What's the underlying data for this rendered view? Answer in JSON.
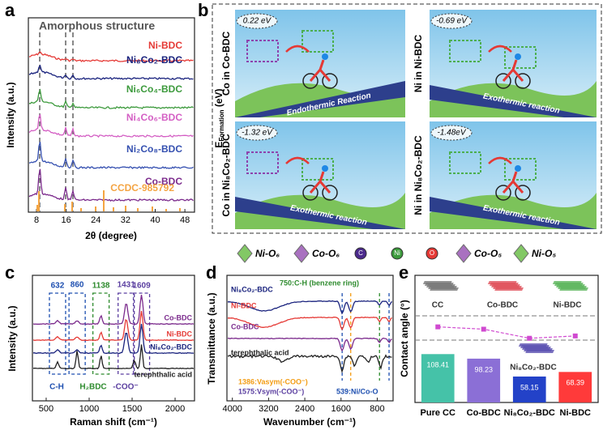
{
  "panel_a": {
    "label": "a",
    "annotation": "Amorphous structure",
    "ylabel": "Intensity (a.u.)",
    "xlabel": "2θ (degree)",
    "xlim": [
      5.8,
      50.6
    ],
    "xticks": [
      8,
      16,
      24,
      32,
      40,
      48
    ],
    "series": [
      {
        "name": "Ni-BDC",
        "color": "#e53935"
      },
      {
        "name": "Ni₈Co₂-BDC",
        "color": "#1a237e"
      },
      {
        "name": "Ni₆Co₄-BDC",
        "color": "#3c9a3c"
      },
      {
        "name": "Ni₄Co₆-BDC",
        "color": "#d45fc4"
      },
      {
        "name": "Ni₂Co₈-BDC",
        "color": "#3550b0"
      },
      {
        "name": "Co-BDC",
        "color": "#7b2a8c"
      },
      {
        "name": "CCDC-985792",
        "color": "#f4a442"
      }
    ]
  },
  "panel_b": {
    "label": "b",
    "ylabel_main": "E",
    "ylabel_sub": "Formation",
    "ylabel_unit": " (eV)",
    "quadrants": [
      {
        "energy": "0.22 eV",
        "site": "Co in Co-BDC",
        "reaction": "Endothermic Reaction"
      },
      {
        "energy": "-0.69 eV",
        "site": "Ni in Ni-BDC",
        "reaction": "Exothermic reaction"
      },
      {
        "energy": "-1.32 eV",
        "site": "Co in Ni₈Co₂-BDC",
        "reaction": "Exothermic reaction"
      },
      {
        "energy": "-1.48eV",
        "site": "Ni in Ni₈Co₂-BDC",
        "reaction": "Exothermic reaction"
      }
    ],
    "legend": [
      "Ni-O₆",
      "Co-O₆",
      "C",
      "Ni",
      "O",
      "Co-O₅",
      "Ni-O₅"
    ]
  },
  "panel_c": {
    "label": "c",
    "ylabel": "Intensity (a.u.)",
    "xlabel": "Raman shift (cm⁻¹)",
    "xlim": [
      340,
      2226
    ],
    "xticks": [
      500,
      1000,
      1500,
      2000
    ],
    "peaks": [
      632,
      860,
      1138,
      1431,
      1609
    ],
    "groups": [
      "C-H",
      "H₂BDC",
      "-COO⁻"
    ],
    "series": [
      {
        "name": "Co-BDC",
        "color": "#7b2a8c"
      },
      {
        "name": "Ni-BDC",
        "color": "#e53935"
      },
      {
        "name": "Ni₈Co₂-BDC",
        "color": "#1a237e"
      },
      {
        "name": "terephthalic acid",
        "color": "#222222"
      }
    ]
  },
  "panel_d": {
    "label": "d",
    "ylabel": "Transmittance (a.u.)",
    "xlabel": "Wavenumber (cm⁻¹)",
    "xlim": [
      4120,
      450
    ],
    "xticks": [
      4000,
      3200,
      2400,
      1600,
      800
    ],
    "annotations": [
      "750:C-H (benzene ring)",
      "1386:Vasym(-COO⁻)",
      "1575:Vsym(-COO⁻)",
      "539:Ni/Co-O"
    ],
    "series": [
      {
        "name": "Ni₈Co₂-BDC",
        "color": "#1a237e"
      },
      {
        "name": "Ni-BDC",
        "color": "#e53935"
      },
      {
        "name": "Co-BDC",
        "color": "#7b2a8c"
      },
      {
        "name": "terephthalic acid",
        "color": "#222222"
      }
    ]
  },
  "chart_data": {
    "type": "bar",
    "label": "e",
    "ylabel": "Contact angle (°)",
    "ylim": [
      0,
      285
    ],
    "categories": [
      "Pure CC",
      "Co-BDC",
      "Ni₈Co₂-BDC",
      "Ni-BDC"
    ],
    "values": [
      108.41,
      98.23,
      58.15,
      68.39
    ],
    "colors": [
      "#45c2a8",
      "#8b6fd6",
      "#2342c8",
      "#ff3a3a"
    ],
    "images": [
      "CC",
      "Co-BDC",
      "Ni-BDC",
      "Ni₈Co₂-BDC"
    ]
  }
}
